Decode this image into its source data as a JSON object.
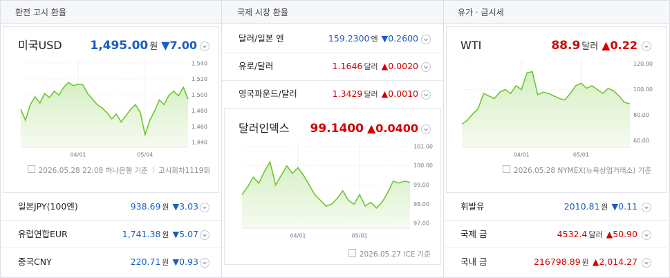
{
  "panels": [
    {
      "title": "환전 고시 환율",
      "main": {
        "name": "미국USD",
        "value": "1,495.00",
        "unit": "원",
        "change": "▼7.00",
        "color": "#1a5cc8"
      },
      "chart": {
        "type": "line",
        "categories": [
          null,
          null,
          null,
          null,
          null,
          null,
          null,
          null,
          null,
          null,
          null,
          null,
          "04/01",
          null,
          null,
          null,
          null,
          null,
          null,
          null,
          null,
          null,
          null,
          null,
          null,
          null,
          "05/04",
          null,
          null,
          null,
          null,
          null,
          null,
          null,
          null,
          null
        ],
        "values": [
          1482,
          1468,
          1488,
          1498,
          1490,
          1502,
          1497,
          1505,
          1500,
          1510,
          1516,
          1512,
          1514,
          1513,
          1502,
          1495,
          1488,
          1484,
          1478,
          1470,
          1476,
          1466,
          1474,
          1482,
          1488,
          1478,
          1450,
          1468,
          1480,
          1494,
          1488,
          1500,
          1505,
          1499,
          1510,
          1495
        ],
        "color": "#6cc72c",
        "ylim": [
          1434,
          1546
        ],
        "yticks": [
          {
            "value": 1440,
            "label": "1,440"
          },
          {
            "value": 1460,
            "label": "1,460"
          },
          {
            "value": 1480,
            "label": "1,480"
          },
          {
            "value": 1500,
            "label": "1,500"
          },
          {
            "value": 1520,
            "label": "1,520"
          },
          {
            "value": 1540,
            "label": "1,540"
          }
        ]
      },
      "source": [
        "2026.05.28 22:08 하나은행 기준",
        "고시회차1119회"
      ],
      "rows": [
        {
          "name": "일본JPY(100엔)",
          "value": "938.69",
          "unit": "원",
          "change": "▼3.03",
          "color": "#1a5cc8"
        },
        {
          "name": "유럽연합EUR",
          "value": "1,741.38",
          "unit": "원",
          "change": "▼5.07",
          "color": "#1a5cc8"
        },
        {
          "name": "중국CNY",
          "value": "220.71",
          "unit": "원",
          "change": "▼0.93",
          "color": "#1a5cc8"
        }
      ]
    },
    {
      "title": "국제 시장 환율",
      "rows": [
        {
          "name": "달러/일본 엔",
          "value": "159.2300",
          "unit": "엔",
          "change": "▼0.2600",
          "color": "#1a5cc8"
        },
        {
          "name": "유로/달러",
          "value": "1.1646",
          "unit": "달러",
          "change": "▲0.0020",
          "color": "#d20000"
        },
        {
          "name": "영국파운드/달러",
          "value": "1.3429",
          "unit": "달러",
          "change": "▲0.0010",
          "color": "#d20000"
        }
      ],
      "main": {
        "name": "달러인덱스",
        "value": "99.1400",
        "change": "▲0.0400",
        "color": "#d20000"
      },
      "chart": {
        "type": "line",
        "categories": [
          null,
          null,
          null,
          null,
          null,
          null,
          null,
          null,
          null,
          null,
          "04/01",
          null,
          null,
          null,
          null,
          null,
          null,
          null,
          null,
          null,
          null,
          "05/01",
          null,
          null,
          null,
          null,
          null,
          null,
          null,
          null,
          null
        ],
        "values": [
          98.5,
          98.9,
          99.4,
          99.1,
          99.7,
          100.2,
          99.0,
          99.5,
          100.0,
          99.6,
          99.9,
          99.5,
          99.0,
          98.5,
          98.2,
          97.9,
          98.0,
          98.3,
          98.7,
          98.2,
          98.0,
          98.5,
          97.9,
          98.1,
          97.8,
          98.1,
          98.6,
          99.2,
          99.1,
          99.2,
          99.14
        ],
        "color": "#6cc72c",
        "ylim": [
          96.75,
          101.25
        ],
        "yticks": [
          {
            "value": 97,
            "label": "97.00"
          },
          {
            "value": 98,
            "label": "98.00"
          },
          {
            "value": 99,
            "label": "99.00"
          },
          {
            "value": 100,
            "label": "100.00"
          },
          {
            "value": 101,
            "label": "101.00"
          }
        ]
      },
      "source": [
        "2026.05.27 ICE 기준"
      ]
    },
    {
      "title": "유가 · 금시세",
      "main": {
        "name": "WTI",
        "value": "88.9",
        "unit": "달러",
        "change": "▲0.22",
        "color": "#d20000"
      },
      "chart": {
        "type": "line",
        "categories": [
          null,
          null,
          null,
          null,
          null,
          null,
          null,
          null,
          null,
          null,
          null,
          "04/01",
          null,
          null,
          null,
          null,
          null,
          null,
          null,
          null,
          null,
          null,
          "05/01",
          null,
          null,
          null,
          null,
          null,
          null,
          null,
          null,
          null
        ],
        "values": [
          73,
          76,
          81,
          85,
          97,
          95,
          93,
          98,
          100,
          97,
          103,
          100,
          113,
          114,
          96,
          98,
          97,
          95,
          93,
          92,
          97,
          103,
          105,
          101,
          103,
          100,
          97,
          101,
          99,
          95,
          90,
          88.9
        ],
        "color": "#6cc72c",
        "ylim": [
          55,
          124
        ],
        "yticks": [
          {
            "value": 60,
            "label": "60.00"
          },
          {
            "value": 80,
            "label": "80.00"
          },
          {
            "value": 100,
            "label": "100.00"
          },
          {
            "value": 120,
            "label": "120.00"
          }
        ]
      },
      "source": [
        "2026.05.28 NYMEX(뉴욕상업거래소) 기준"
      ],
      "rows": [
        {
          "name": "휘발유",
          "value": "2010.81",
          "unit": "원",
          "change": "▼0.11",
          "color": "#1a5cc8"
        },
        {
          "name": "국제 금",
          "value": "4532.4",
          "unit": "달러",
          "change": "▲50.90",
          "color": "#d20000"
        },
        {
          "name": "국내 금",
          "value": "216798.89",
          "unit": "원",
          "change": "▲2,014.27",
          "color": "#d20000"
        }
      ]
    }
  ]
}
